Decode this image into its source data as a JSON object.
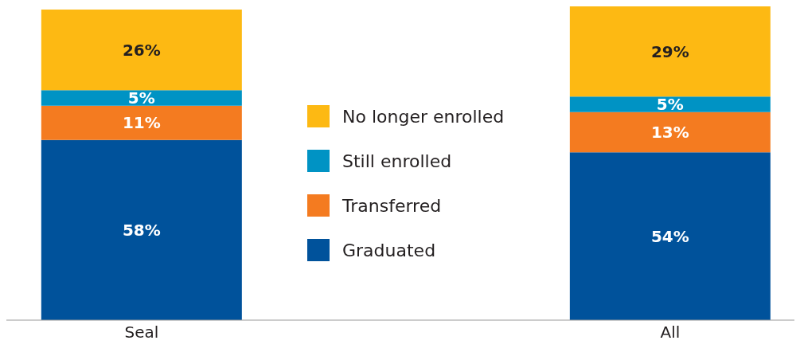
{
  "chart_data": {
    "type": "bar",
    "stacked": true,
    "categories": [
      "Seal",
      "All"
    ],
    "legend": "center",
    "grid": false,
    "series": [
      {
        "name": "Graduated",
        "color": "#00529b",
        "values": [
          58,
          54
        ],
        "value_labels": [
          "58%",
          "54%"
        ]
      },
      {
        "name": "Transferred",
        "color": "#f47b20",
        "values": [
          11,
          13
        ],
        "value_labels": [
          "11%",
          "13%"
        ]
      },
      {
        "name": "Still enrolled",
        "color": "#0093c4",
        "values": [
          5,
          5
        ],
        "value_labels": [
          "5%",
          "5%"
        ]
      },
      {
        "name": "No longer enrolled",
        "color": "#fdb913",
        "values": [
          26,
          29
        ],
        "value_labels": [
          "26%",
          "29%"
        ]
      }
    ]
  }
}
